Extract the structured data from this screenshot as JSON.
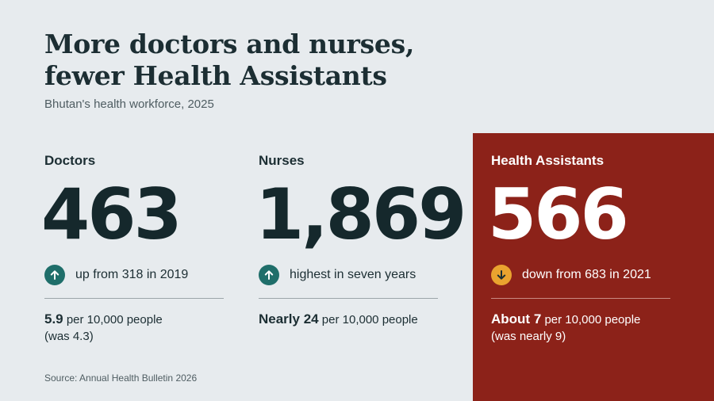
{
  "header": {
    "title_line1": "More doctors and nurses,",
    "title_line2": "fewer Health Assistants",
    "subtitle": "Bhutan's health workforce, 2025"
  },
  "cards": {
    "doctors": {
      "label": "Doctors",
      "value": "463",
      "trend_direction": "up",
      "trend_text": "up from 318 in 2019",
      "rate_value": "5.9",
      "rate_text": "per 10,000 people",
      "rate_previous": "(was 4.3)"
    },
    "nurses": {
      "label": "Nurses",
      "value": "1,869",
      "trend_direction": "up",
      "trend_text": "highest in seven years",
      "rate_value": "Nearly 24",
      "rate_text": "per 10,000 people"
    },
    "health_assistants": {
      "label": "Health Assistants",
      "value": "566",
      "trend_direction": "down",
      "trend_text": "down from 683 in 2021",
      "rate_value": "About 7",
      "rate_text": "per 10,000 people",
      "rate_previous": "(was nearly 9)"
    }
  },
  "footer": {
    "source": "Source: Annual Health Bulletin 2026"
  },
  "colors": {
    "background": "#e7ebee",
    "highlight_panel": "#8c2219",
    "up_badge": "#1f6e6a",
    "down_badge": "#eaa32f",
    "text_dark": "#1c2e33"
  },
  "icons": {
    "up": "arrow-up-icon",
    "down": "arrow-down-icon"
  }
}
